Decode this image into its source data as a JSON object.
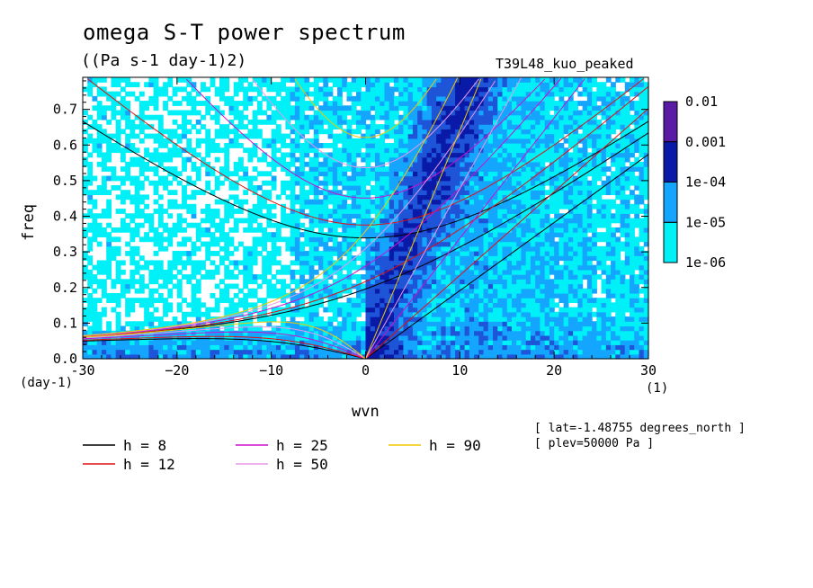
{
  "chart_data": {
    "type": "heatmap",
    "title": "omega S-T power spectrum",
    "units": "((Pa s-1 day-1)2)",
    "case_label": "T39L48_kuo_peaked",
    "xlabel": "wvn",
    "ylabel": "freq",
    "x_unit_label": "(1)",
    "y_unit_label": "(day-1)",
    "xlim": [
      -30,
      30
    ],
    "ylim": [
      0,
      0.79
    ],
    "x_ticks": [
      -30,
      -20,
      -10,
      0,
      10,
      20,
      30
    ],
    "x_tick_labels": [
      "-30",
      "−20",
      "−10",
      "0",
      "10",
      "20",
      "30"
    ],
    "y_ticks": [
      0,
      0.1,
      0.2,
      0.3,
      0.4,
      0.5,
      0.6,
      0.7
    ],
    "y_tick_labels": [
      "0.0",
      "0.1",
      "0.2",
      "0.3",
      "0.4",
      "0.5",
      "0.6",
      "0.7"
    ],
    "colorbar": {
      "levels": [
        "0.01",
        "0.001",
        "1e-04",
        "1e-05",
        "1e-06"
      ],
      "colors": [
        "#5a1aa6",
        "#0a1aa8",
        "#1e54d8",
        "#14a6ff",
        "#00f0f8"
      ]
    },
    "dispersion_curves": [
      {
        "h": 8,
        "label": "h =  8",
        "color": "#000000"
      },
      {
        "h": 12,
        "label": "h = 12",
        "color": "#e01010"
      },
      {
        "h": 25,
        "label": "h = 25",
        "color": "#cc10cc"
      },
      {
        "h": 50,
        "label": "h = 50",
        "color": "#e898e8"
      },
      {
        "h": 90,
        "label": "h = 90",
        "color": "#f0c800"
      }
    ],
    "annotations": [
      "[ lat=-1.48755 degrees_north ]",
      "[ plev=50000 Pa ]"
    ]
  }
}
